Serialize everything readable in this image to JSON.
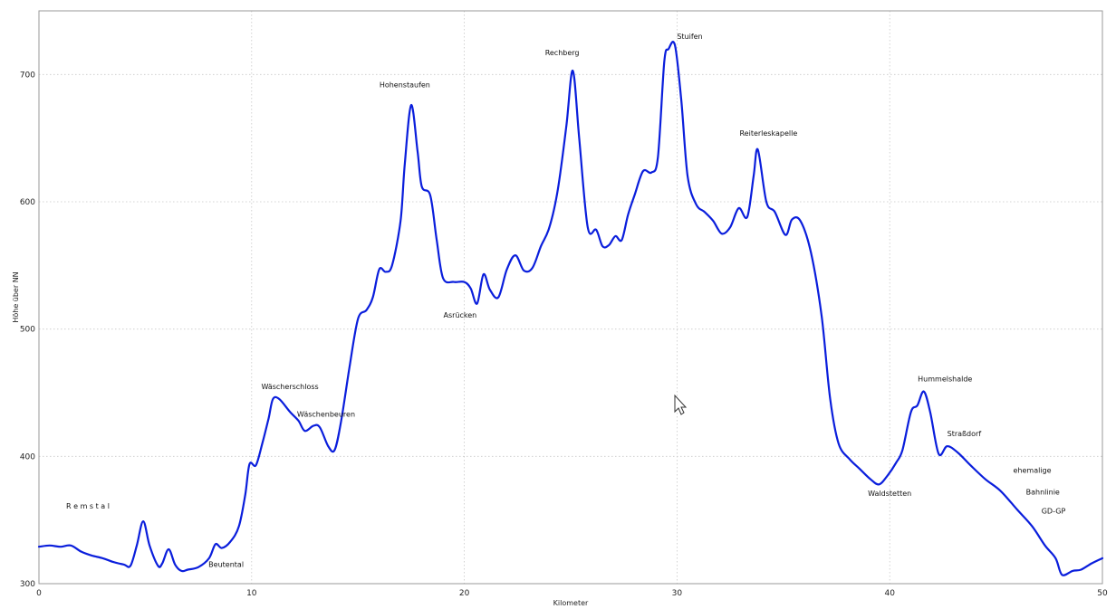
{
  "chart_data": {
    "type": "line",
    "title": "",
    "xlabel": "Kilometer",
    "ylabel": "Höhe über NN",
    "xlim": [
      0,
      50
    ],
    "ylim": [
      300,
      750
    ],
    "x_ticks": [
      0,
      10,
      20,
      30,
      40,
      50
    ],
    "y_ticks": [
      300,
      400,
      500,
      600,
      700
    ],
    "grid": true,
    "series": [
      {
        "color": "#0a1edc",
        "points": [
          [
            0,
            329
          ],
          [
            0.5,
            330
          ],
          [
            1,
            329
          ],
          [
            1.5,
            330
          ],
          [
            2,
            325
          ],
          [
            2.5,
            322
          ],
          [
            3,
            320
          ],
          [
            3.5,
            317
          ],
          [
            4,
            315
          ],
          [
            4.3,
            314
          ],
          [
            4.6,
            330
          ],
          [
            4.9,
            349
          ],
          [
            5.2,
            330
          ],
          [
            5.6,
            314
          ],
          [
            5.8,
            316
          ],
          [
            6.1,
            327
          ],
          [
            6.4,
            315
          ],
          [
            6.7,
            310
          ],
          [
            7,
            311
          ],
          [
            7.5,
            313
          ],
          [
            8,
            320
          ],
          [
            8.3,
            331
          ],
          [
            8.6,
            328
          ],
          [
            9,
            333
          ],
          [
            9.4,
            345
          ],
          [
            9.7,
            370
          ],
          [
            9.9,
            394
          ],
          [
            10.2,
            393
          ],
          [
            10.5,
            410
          ],
          [
            10.8,
            430
          ],
          [
            11,
            445
          ],
          [
            11.3,
            445
          ],
          [
            11.8,
            435
          ],
          [
            12.2,
            428
          ],
          [
            12.5,
            420
          ],
          [
            12.9,
            424
          ],
          [
            13.2,
            423
          ],
          [
            13.6,
            408
          ],
          [
            13.9,
            405
          ],
          [
            14.2,
            427
          ],
          [
            14.6,
            470
          ],
          [
            15,
            508
          ],
          [
            15.4,
            515
          ],
          [
            15.7,
            525
          ],
          [
            16,
            547
          ],
          [
            16.3,
            545
          ],
          [
            16.6,
            550
          ],
          [
            17,
            585
          ],
          [
            17.2,
            630
          ],
          [
            17.5,
            676
          ],
          [
            17.8,
            640
          ],
          [
            18,
            612
          ],
          [
            18.4,
            605
          ],
          [
            18.7,
            570
          ],
          [
            19,
            540
          ],
          [
            19.5,
            537
          ],
          [
            20,
            537
          ],
          [
            20.3,
            532
          ],
          [
            20.6,
            520
          ],
          [
            20.9,
            543
          ],
          [
            21.2,
            531
          ],
          [
            21.6,
            525
          ],
          [
            22,
            547
          ],
          [
            22.4,
            558
          ],
          [
            22.8,
            546
          ],
          [
            23.2,
            548
          ],
          [
            23.6,
            565
          ],
          [
            24,
            580
          ],
          [
            24.4,
            610
          ],
          [
            24.8,
            660
          ],
          [
            25.1,
            703
          ],
          [
            25.4,
            650
          ],
          [
            25.8,
            580
          ],
          [
            26.2,
            578
          ],
          [
            26.5,
            565
          ],
          [
            26.8,
            566
          ],
          [
            27.1,
            573
          ],
          [
            27.4,
            570
          ],
          [
            27.7,
            590
          ],
          [
            28,
            605
          ],
          [
            28.4,
            624
          ],
          [
            28.8,
            623
          ],
          [
            29.1,
            635
          ],
          [
            29.4,
            710
          ],
          [
            29.6,
            720
          ],
          [
            29.9,
            723
          ],
          [
            30.2,
            680
          ],
          [
            30.5,
            620
          ],
          [
            30.9,
            598
          ],
          [
            31.3,
            592
          ],
          [
            31.7,
            585
          ],
          [
            32.1,
            575
          ],
          [
            32.5,
            580
          ],
          [
            32.9,
            595
          ],
          [
            33.3,
            588
          ],
          [
            33.6,
            620
          ],
          [
            33.8,
            641
          ],
          [
            34.2,
            600
          ],
          [
            34.6,
            592
          ],
          [
            35.1,
            574
          ],
          [
            35.4,
            586
          ],
          [
            35.8,
            585
          ],
          [
            36.3,
            560
          ],
          [
            36.8,
            510
          ],
          [
            37.2,
            445
          ],
          [
            37.6,
            410
          ],
          [
            38.1,
            398
          ],
          [
            38.6,
            390
          ],
          [
            39.1,
            382
          ],
          [
            39.5,
            378
          ],
          [
            39.9,
            385
          ],
          [
            40.3,
            395
          ],
          [
            40.6,
            405
          ],
          [
            41,
            435
          ],
          [
            41.3,
            440
          ],
          [
            41.6,
            451
          ],
          [
            41.9,
            435
          ],
          [
            42.3,
            402
          ],
          [
            42.7,
            408
          ],
          [
            43.2,
            403
          ],
          [
            43.8,
            393
          ],
          [
            44.5,
            382
          ],
          [
            45.2,
            373
          ],
          [
            46,
            358
          ],
          [
            46.7,
            345
          ],
          [
            47.3,
            330
          ],
          [
            47.8,
            320
          ],
          [
            48.1,
            307
          ],
          [
            48.6,
            310
          ],
          [
            49,
            311
          ],
          [
            49.5,
            316
          ],
          [
            50,
            320
          ]
        ]
      }
    ],
    "annotations": [
      {
        "text": "R e m s t a l",
        "x": 2.3,
        "y": 359
      },
      {
        "text": "Beutental",
        "x": 8.8,
        "y": 313
      },
      {
        "text": "Wäscherschloss",
        "x": 11.8,
        "y": 453
      },
      {
        "text": "Wäschenbeuren",
        "x": 13.5,
        "y": 431
      },
      {
        "text": "Hohenstaufen",
        "x": 17.2,
        "y": 690
      },
      {
        "text": "Asrücken",
        "x": 19.8,
        "y": 509
      },
      {
        "text": "Rechberg",
        "x": 24.6,
        "y": 715
      },
      {
        "text": "Stuifen",
        "x": 30.6,
        "y": 728
      },
      {
        "text": "Reiterleskapelle",
        "x": 34.3,
        "y": 652
      },
      {
        "text": "Hummelshalde",
        "x": 42.6,
        "y": 459
      },
      {
        "text": "Straßdorf",
        "x": 43.5,
        "y": 416
      },
      {
        "text": "Waldstetten",
        "x": 40,
        "y": 369
      },
      {
        "text": "ehemalige",
        "x": 46.7,
        "y": 387
      },
      {
        "text": "Bahnlinie",
        "x": 47.2,
        "y": 370
      },
      {
        "text": "GD-GP",
        "x": 47.7,
        "y": 355
      }
    ]
  }
}
